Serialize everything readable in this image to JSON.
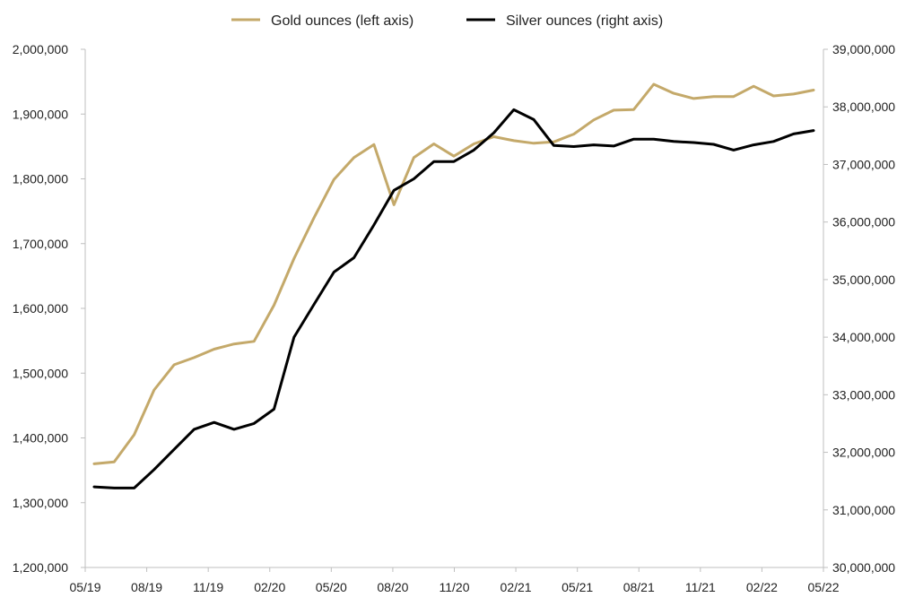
{
  "chart_data": {
    "type": "line",
    "title": "",
    "xlabel": "",
    "ylabel_left": "",
    "ylabel_right": "",
    "legend_position": "top-center",
    "grid": false,
    "x": [
      "05/19",
      "06/19",
      "07/19",
      "08/19",
      "09/19",
      "10/19",
      "11/19",
      "12/19",
      "01/20",
      "02/20",
      "03/20",
      "04/20",
      "05/20",
      "06/20",
      "07/20",
      "08/20",
      "09/20",
      "10/20",
      "11/20",
      "12/20",
      "01/21",
      "02/21",
      "03/21",
      "04/21",
      "05/21",
      "06/21",
      "07/21",
      "08/21",
      "09/21",
      "10/21",
      "11/21",
      "12/21",
      "01/22",
      "02/22",
      "03/22",
      "04/22",
      "05/22"
    ],
    "x_tick_labels": [
      "05/19",
      "08/19",
      "11/19",
      "02/20",
      "05/20",
      "08/20",
      "11/20",
      "02/21",
      "05/21",
      "08/21",
      "11/21",
      "02/22",
      "05/22"
    ],
    "y_left": {
      "range": [
        1200000,
        2000000
      ],
      "tick_labels": [
        "1,200,000",
        "1,300,000",
        "1,400,000",
        "1,500,000",
        "1,600,000",
        "1,700,000",
        "1,800,000",
        "1,900,000",
        "2,000,000"
      ]
    },
    "y_right": {
      "range": [
        30000000,
        39000000
      ],
      "tick_labels": [
        "30,000,000",
        "31,000,000",
        "32,000,000",
        "33,000,000",
        "34,000,000",
        "35,000,000",
        "36,000,000",
        "37,000,000",
        "38,000,000",
        "39,000,000"
      ]
    },
    "series": [
      {
        "name": "Gold ounces (left axis)",
        "axis": "left",
        "color": "#C4A96A",
        "values": [
          1360000,
          1363000,
          1405000,
          1474000,
          1513000,
          1524000,
          1537000,
          1545000,
          1549000,
          1605000,
          1677000,
          1740000,
          1799000,
          1833000,
          1853000,
          1760000,
          1833000,
          1854000,
          1835000,
          1854000,
          1865000,
          1859000,
          1855000,
          1857000,
          1869000,
          1891000,
          1906000,
          1907000,
          1946000,
          1932000,
          1924000,
          1927000,
          1927000,
          1943000,
          1928000,
          1931000,
          1937000
        ]
      },
      {
        "name": "Silver ounces (right axis)",
        "axis": "right",
        "color": "#000000",
        "values": [
          31400000,
          31380000,
          31380000,
          31700000,
          32050000,
          32400000,
          32520000,
          32400000,
          32500000,
          32750000,
          34000000,
          34570000,
          35130000,
          35380000,
          35950000,
          36550000,
          36750000,
          37050000,
          37050000,
          37250000,
          37550000,
          37950000,
          37780000,
          37330000,
          37310000,
          37340000,
          37320000,
          37440000,
          37440000,
          37400000,
          37380000,
          37350000,
          37250000,
          37340000,
          37400000,
          37530000,
          37590000
        ]
      }
    ]
  }
}
